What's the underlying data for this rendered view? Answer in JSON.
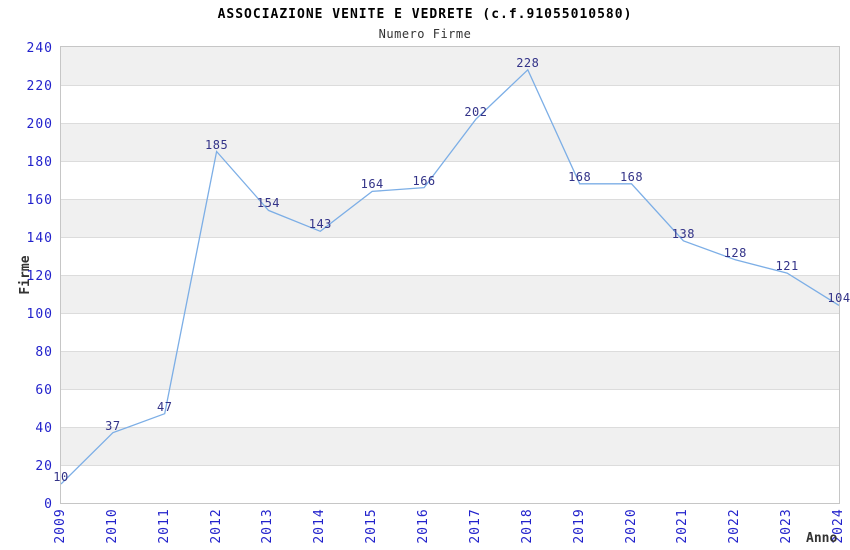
{
  "chart_data": {
    "type": "line",
    "title": "ASSOCIAZIONE VENITE E VEDRETE (c.f.91055010580)",
    "subtitle": "Numero Firme",
    "xlabel": "Anno",
    "ylabel": "Firme",
    "categories": [
      "2009",
      "2010",
      "2011",
      "2012",
      "2013",
      "2014",
      "2015",
      "2016",
      "2017",
      "2018",
      "2019",
      "2020",
      "2021",
      "2022",
      "2023",
      "2024"
    ],
    "values": [
      10,
      37,
      47,
      185,
      154,
      143,
      164,
      166,
      202,
      228,
      168,
      168,
      138,
      128,
      121,
      104
    ],
    "ylim": [
      0,
      240
    ],
    "ytick_step": 20,
    "grid": true,
    "alternating_bands": true,
    "legend": "none",
    "colors": {
      "line": "#7caee6",
      "data_label": "#333388",
      "tick_label": "#2222cc",
      "band_gray": "#f0f0f0",
      "band_white": "#ffffff",
      "gridline": "#dcdcdc",
      "plot_border": "#c6c6c6",
      "title": "#000000",
      "subtitle": "#333333",
      "axis_title": "#333333"
    }
  }
}
